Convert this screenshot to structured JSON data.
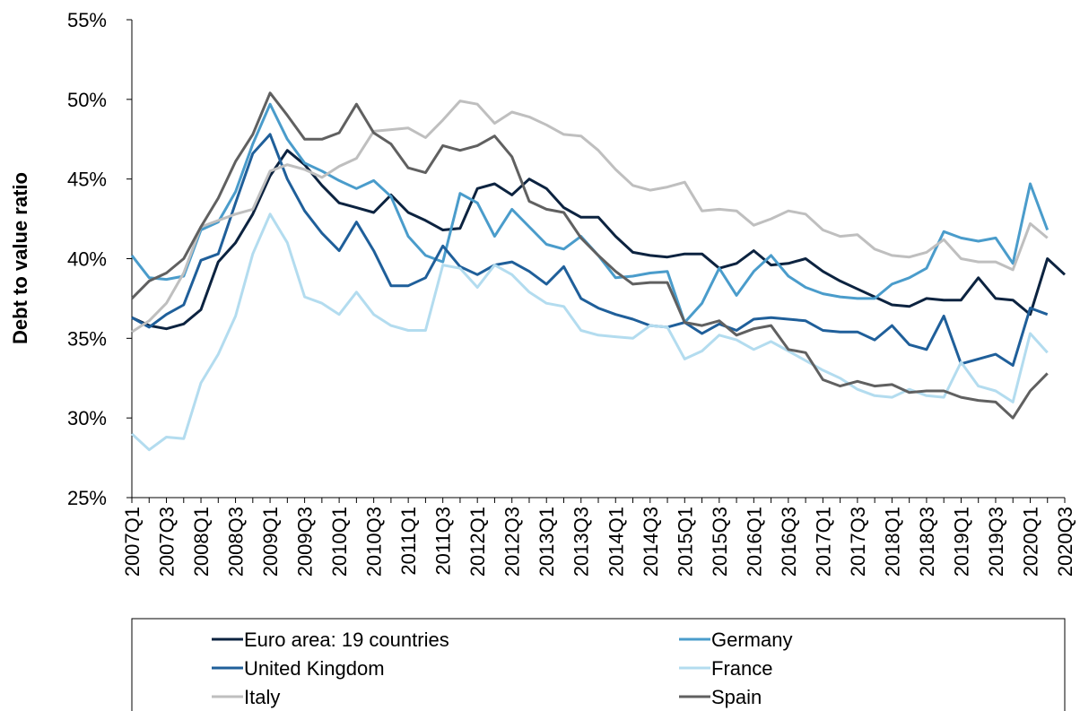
{
  "chart_data": {
    "type": "line",
    "y_label": "Debt to value ratio",
    "ylim": [
      25,
      55
    ],
    "yticks": [
      {
        "value": 25,
        "label": "25%"
      },
      {
        "value": 30,
        "label": "30%"
      },
      {
        "value": 35,
        "label": "35%"
      },
      {
        "value": 40,
        "label": "40%"
      },
      {
        "value": 45,
        "label": "45%"
      },
      {
        "value": 50,
        "label": "50%"
      },
      {
        "value": 55,
        "label": "55%"
      }
    ],
    "legend": "bottom",
    "categories": [
      "2007Q1",
      null,
      "2007Q3",
      null,
      "2008Q1",
      null,
      "2008Q3",
      null,
      "2009Q1",
      null,
      "2009Q3",
      null,
      "2010Q1",
      null,
      "2010Q3",
      null,
      "2011Q1",
      null,
      "2011Q3",
      null,
      "2012Q1",
      null,
      "2012Q3",
      null,
      "2013Q1",
      null,
      "2013Q3",
      null,
      "2014Q1",
      null,
      "2014Q3",
      null,
      "2015Q1",
      null,
      "2015Q3",
      null,
      "2016Q1",
      null,
      "2016Q3",
      null,
      "2017Q1",
      null,
      "2017Q3",
      null,
      "2018Q1",
      null,
      "2018Q3",
      null,
      "2019Q1",
      null,
      "2019Q3",
      null,
      "2020Q1",
      null,
      "2020Q3"
    ],
    "series": [
      {
        "name": "Euro area: 19 countries",
        "color": "#0c2340",
        "values": [
          36.3,
          35.8,
          35.6,
          35.9,
          36.8,
          39.8,
          41.0,
          42.8,
          45.2,
          46.8,
          45.9,
          44.6,
          43.5,
          43.2,
          42.9,
          44.0,
          42.9,
          42.4,
          41.8,
          41.9,
          44.4,
          44.7,
          44.0,
          45.0,
          44.4,
          43.2,
          42.6,
          42.6,
          41.4,
          40.4,
          40.2,
          40.1,
          40.3,
          40.3,
          39.4,
          39.7,
          40.5,
          39.6,
          39.7,
          40.0,
          39.2,
          38.6,
          38.1,
          37.6,
          37.1,
          37.0,
          37.5,
          37.4,
          37.4,
          38.8,
          37.5,
          37.4,
          36.5,
          40.0,
          39.0
        ]
      },
      {
        "name": "Germany",
        "color": "#4a9ccb",
        "values": [
          40.2,
          38.8,
          38.7,
          38.9,
          41.8,
          42.3,
          44.2,
          47.2,
          49.7,
          47.5,
          46.0,
          45.5,
          44.9,
          44.4,
          44.9,
          43.9,
          41.4,
          40.2,
          39.8,
          44.1,
          43.5,
          41.4,
          43.1,
          42.0,
          40.9,
          40.6,
          41.4,
          40.2,
          38.8,
          38.9,
          39.1,
          39.2,
          36.0,
          37.2,
          39.4,
          37.7,
          39.2,
          40.2,
          38.9,
          38.2,
          37.8,
          37.6,
          37.5,
          37.5,
          38.4,
          38.8,
          39.4,
          41.7,
          41.3,
          41.1,
          41.3,
          39.7,
          44.7,
          41.8,
          null
        ]
      },
      {
        "name": "United Kingdom",
        "color": "#1f5f9a",
        "values": [
          36.3,
          35.7,
          36.5,
          37.1,
          39.9,
          40.3,
          43.5,
          46.6,
          47.8,
          45.0,
          43.0,
          41.6,
          40.5,
          42.3,
          40.5,
          38.3,
          38.3,
          38.8,
          40.8,
          39.5,
          39.0,
          39.6,
          39.8,
          39.2,
          38.4,
          39.5,
          37.5,
          36.9,
          36.5,
          36.2,
          35.8,
          35.7,
          36.0,
          35.3,
          35.9,
          35.5,
          36.2,
          36.3,
          36.2,
          36.1,
          35.5,
          35.4,
          35.4,
          34.9,
          35.8,
          34.6,
          34.3,
          36.4,
          33.4,
          33.7,
          34.0,
          33.3,
          36.9,
          36.5,
          null
        ]
      },
      {
        "name": "France",
        "color": "#b3dcef",
        "values": [
          29.0,
          28.0,
          28.8,
          28.7,
          32.2,
          34.0,
          36.4,
          40.3,
          42.8,
          41.0,
          37.6,
          37.2,
          36.5,
          37.9,
          36.5,
          35.8,
          35.5,
          35.5,
          39.6,
          39.4,
          38.2,
          39.6,
          39.0,
          37.9,
          37.2,
          37.0,
          35.5,
          35.2,
          35.1,
          35.0,
          35.8,
          35.7,
          33.7,
          34.2,
          35.2,
          34.9,
          34.3,
          34.8,
          34.2,
          33.6,
          33.0,
          32.5,
          31.8,
          31.4,
          31.3,
          31.8,
          31.4,
          31.3,
          33.5,
          32.0,
          31.7,
          31.0,
          35.3,
          34.1,
          null
        ]
      },
      {
        "name": "Italy",
        "color": "#bfbfbf",
        "values": [
          35.4,
          36.1,
          37.2,
          39.1,
          42.0,
          42.4,
          42.8,
          43.1,
          45.5,
          45.9,
          45.6,
          45.1,
          45.8,
          46.3,
          48.0,
          48.1,
          48.2,
          47.6,
          48.7,
          49.9,
          49.7,
          48.5,
          49.2,
          48.9,
          48.4,
          47.8,
          47.7,
          46.8,
          45.6,
          44.6,
          44.3,
          44.5,
          44.8,
          43.0,
          43.1,
          43.0,
          42.1,
          42.5,
          43.0,
          42.8,
          41.8,
          41.4,
          41.5,
          40.6,
          40.2,
          40.1,
          40.4,
          41.2,
          40.0,
          39.8,
          39.8,
          39.3,
          42.2,
          41.3,
          null
        ]
      },
      {
        "name": "Spain",
        "color": "#606060",
        "values": [
          37.5,
          38.6,
          39.1,
          40.0,
          42.0,
          43.8,
          46.1,
          47.8,
          50.4,
          49.0,
          47.5,
          47.5,
          47.9,
          49.7,
          47.9,
          47.2,
          45.7,
          45.4,
          47.1,
          46.8,
          47.1,
          47.7,
          46.4,
          43.6,
          43.1,
          42.9,
          41.3,
          40.2,
          39.2,
          38.4,
          38.5,
          38.5,
          36.0,
          35.8,
          36.1,
          35.2,
          35.6,
          35.8,
          34.3,
          34.1,
          32.4,
          32.0,
          32.3,
          32.0,
          32.1,
          31.6,
          31.7,
          31.7,
          31.3,
          31.1,
          31.0,
          30.0,
          31.7,
          32.8,
          null
        ]
      }
    ]
  }
}
